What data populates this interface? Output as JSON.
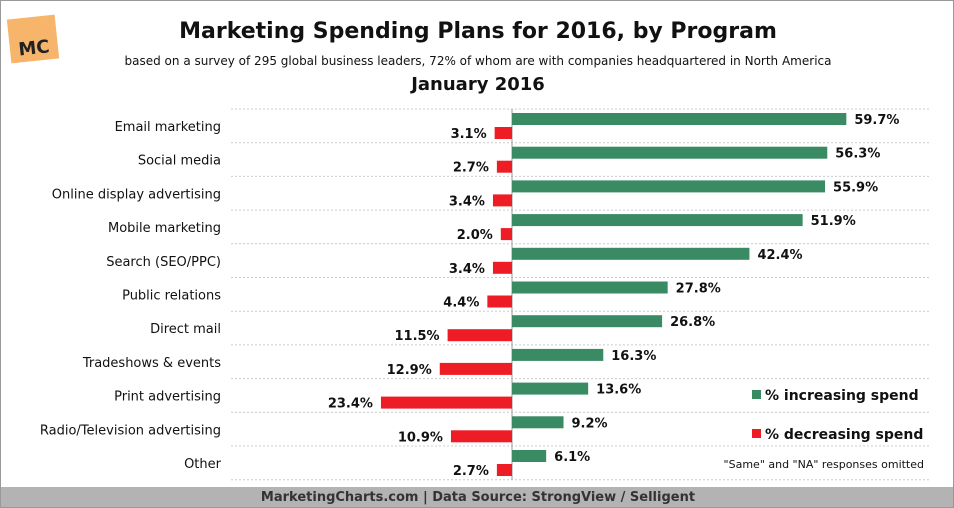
{
  "logo": "MC",
  "footer": "MarketingCharts.com | Data Source: StrongView / Selligent",
  "chart_data": {
    "type": "bar",
    "title": "Marketing Spending Plans for 2016, by Program",
    "subtitle": "based on a survey of 295 global business leaders, 72% of whom are with companies headquartered in North America",
    "date": "January 2016",
    "categories": [
      "Email marketing",
      "Social media",
      "Online display advertising",
      "Mobile marketing",
      "Search (SEO/PPC)",
      "Public relations",
      "Direct mail",
      "Tradeshows & events",
      "Print advertising",
      "Radio/Television advertising",
      "Other"
    ],
    "series": [
      {
        "name": "% increasing spend",
        "color": "#3a8a64",
        "values": [
          59.7,
          56.3,
          55.9,
          51.9,
          42.4,
          27.8,
          26.8,
          16.3,
          13.6,
          9.2,
          6.1
        ]
      },
      {
        "name": "% decreasing spend",
        "color": "#ee1c25",
        "values": [
          3.1,
          2.7,
          3.4,
          2.0,
          3.4,
          4.4,
          11.5,
          12.9,
          23.4,
          10.9,
          2.7
        ]
      }
    ],
    "note": "\"Same\" and \"NA\" responses omitted",
    "legend": "right",
    "grid": true
  }
}
